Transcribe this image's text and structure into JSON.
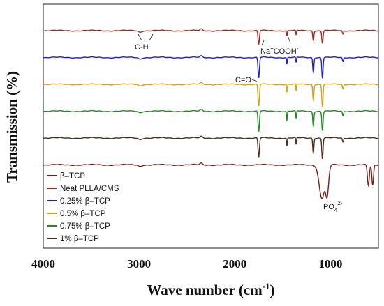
{
  "chart_data": {
    "type": "line",
    "title": "",
    "xlabel": "Wave number (cm",
    "xlabel_sup": "-1",
    "xlabel_end": ")",
    "ylabel": "Transmission (%)",
    "xlim": [
      4000,
      500
    ],
    "x_ticks": [
      4000,
      3000,
      2000,
      1000
    ],
    "legend": {
      "placement": "bottom-left"
    },
    "annotations": {
      "ch": "C-H",
      "na_pre": "Na",
      "na_sup": "+",
      "na_post": "COOH",
      "na_sup2": "-",
      "co": "C=O",
      "po_main": "PO",
      "po_sub": "4",
      "po_sup": "2-"
    },
    "series": [
      {
        "name": "β–TCP",
        "color": "#7a1e14",
        "offset": 0,
        "dips": [
          [
            1090,
            48,
            40
          ],
          [
            1035,
            40,
            22
          ],
          [
            605,
            30,
            14
          ],
          [
            560,
            30,
            12
          ]
        ]
      },
      {
        "name": "Neat PLLA/CMS",
        "color": "#a3261b",
        "offset": 1,
        "dips": [
          [
            1750,
            20,
            10
          ],
          [
            1455,
            8,
            5
          ],
          [
            1360,
            7,
            5
          ],
          [
            1180,
            14,
            8
          ],
          [
            1085,
            18,
            9
          ],
          [
            870,
            5,
            8
          ]
        ]
      },
      {
        "name": "0.25% β–TCP",
        "color": "#1c1fd6",
        "offset": 2,
        "dips": [
          [
            1750,
            30,
            10
          ],
          [
            1455,
            10,
            5
          ],
          [
            1360,
            8,
            5
          ],
          [
            1180,
            22,
            8
          ],
          [
            1085,
            30,
            9
          ],
          [
            870,
            6,
            8
          ]
        ]
      },
      {
        "name": "0.5% β–TCP",
        "color": "#d6a214",
        "offset": 3,
        "dips": [
          [
            1750,
            32,
            10
          ],
          [
            1455,
            12,
            5
          ],
          [
            1360,
            10,
            5
          ],
          [
            1180,
            24,
            8
          ],
          [
            1085,
            32,
            9
          ],
          [
            870,
            7,
            8
          ]
        ]
      },
      {
        "name": "0.75% β–TCP",
        "color": "#1f8a1f",
        "offset": 4,
        "dips": [
          [
            1750,
            30,
            10
          ],
          [
            1455,
            14,
            5
          ],
          [
            1360,
            12,
            5
          ],
          [
            1180,
            22,
            8
          ],
          [
            1085,
            28,
            9
          ],
          [
            870,
            7,
            8
          ]
        ]
      },
      {
        "name": "1% β–TCP",
        "color": "#4a2e1a",
        "offset": 5,
        "dips": [
          [
            1750,
            28,
            10
          ],
          [
            1455,
            12,
            5
          ],
          [
            1360,
            10,
            5
          ],
          [
            1180,
            22,
            8
          ],
          [
            1085,
            30,
            9
          ],
          [
            870,
            6,
            8
          ]
        ]
      }
    ]
  }
}
